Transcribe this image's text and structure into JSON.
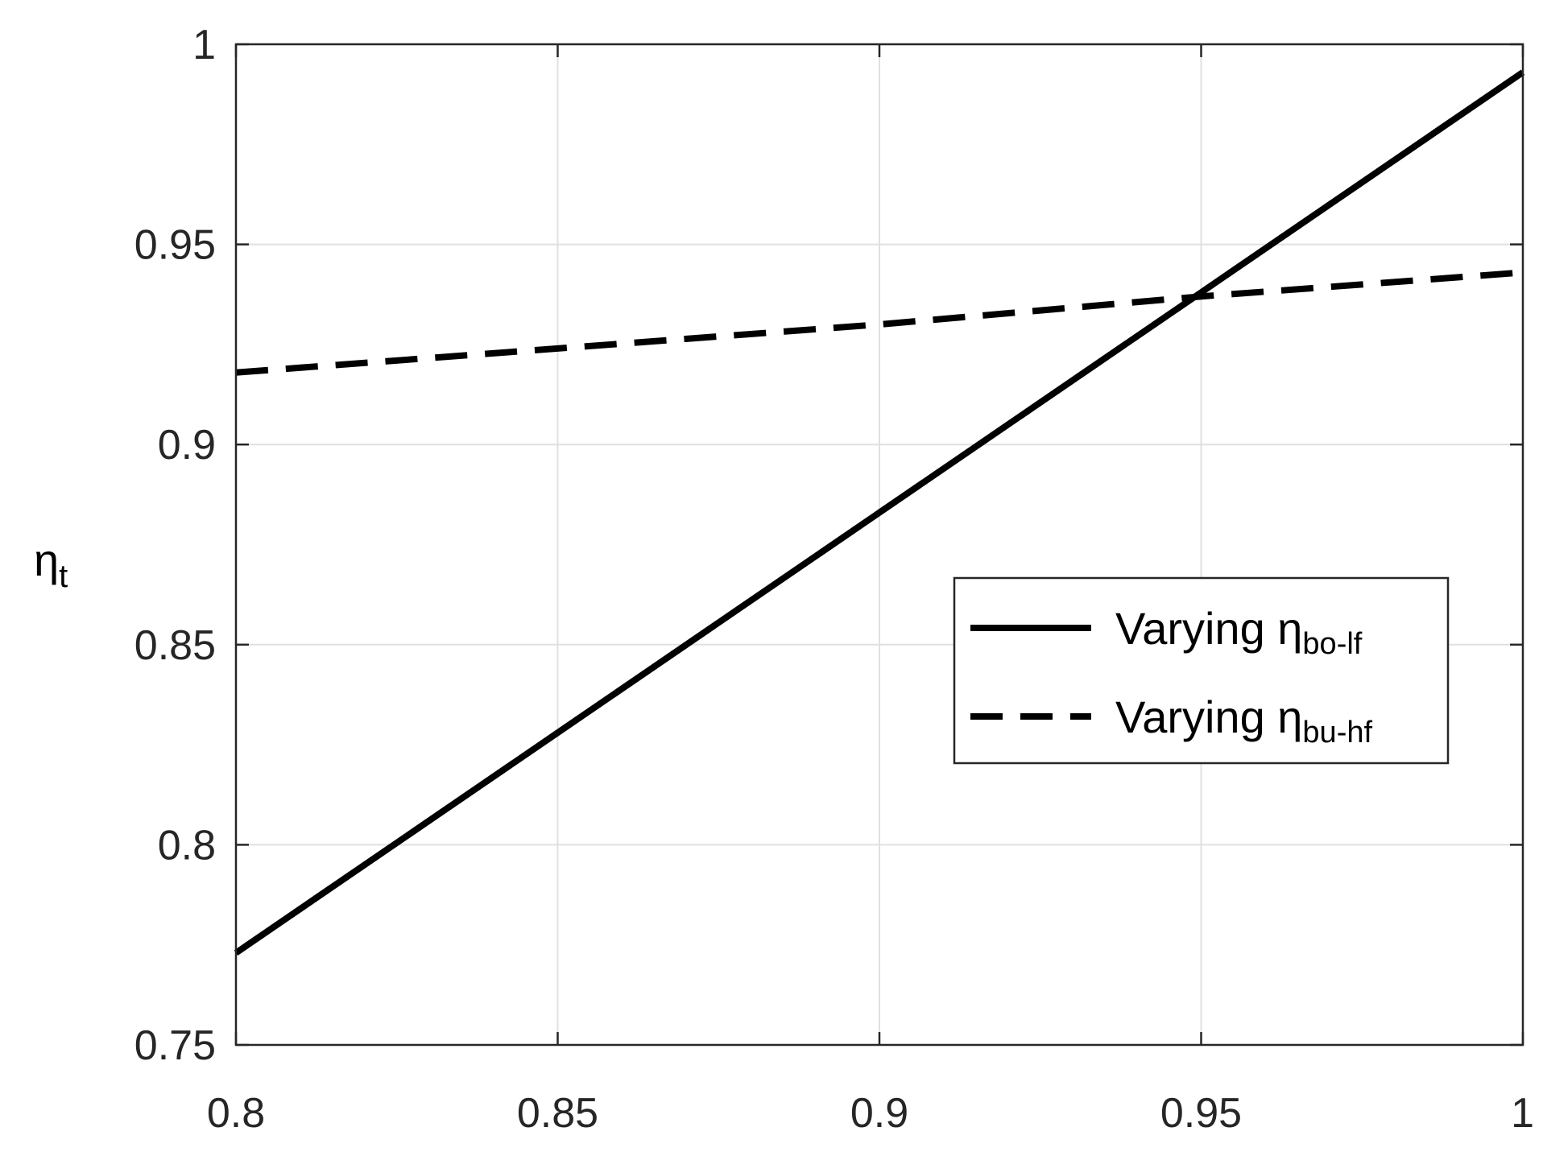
{
  "chart_data": {
    "type": "line",
    "title": "",
    "xlabel": "",
    "ylabel": "η",
    "ylabel_sub": "t",
    "xlim": [
      0.8,
      1.0
    ],
    "ylim": [
      0.75,
      1.0
    ],
    "xticks": [
      0.8,
      0.85,
      0.9,
      0.95,
      1.0
    ],
    "xtick_labels": [
      "0.8",
      "0.85",
      "0.9",
      "0.95",
      "1"
    ],
    "yticks": [
      0.75,
      0.8,
      0.85,
      0.9,
      0.95,
      1.0
    ],
    "ytick_labels": [
      "0.75",
      "0.8",
      "0.85",
      "0.9",
      "0.95",
      "1"
    ],
    "grid": true,
    "legend_position": "right",
    "series": [
      {
        "name": "Varying η",
        "name_sub": "bo-lf",
        "style": "solid",
        "color": "#000000",
        "x": [
          0.8,
          0.85,
          0.9,
          0.95,
          1.0
        ],
        "y": [
          0.773,
          0.828,
          0.883,
          0.938,
          0.993
        ]
      },
      {
        "name": "Varying η",
        "name_sub": "bu-hf",
        "style": "dashed",
        "color": "#000000",
        "x": [
          0.8,
          0.85,
          0.9,
          0.95,
          1.0
        ],
        "y": [
          0.918,
          0.924,
          0.93,
          0.937,
          0.943
        ]
      }
    ]
  }
}
